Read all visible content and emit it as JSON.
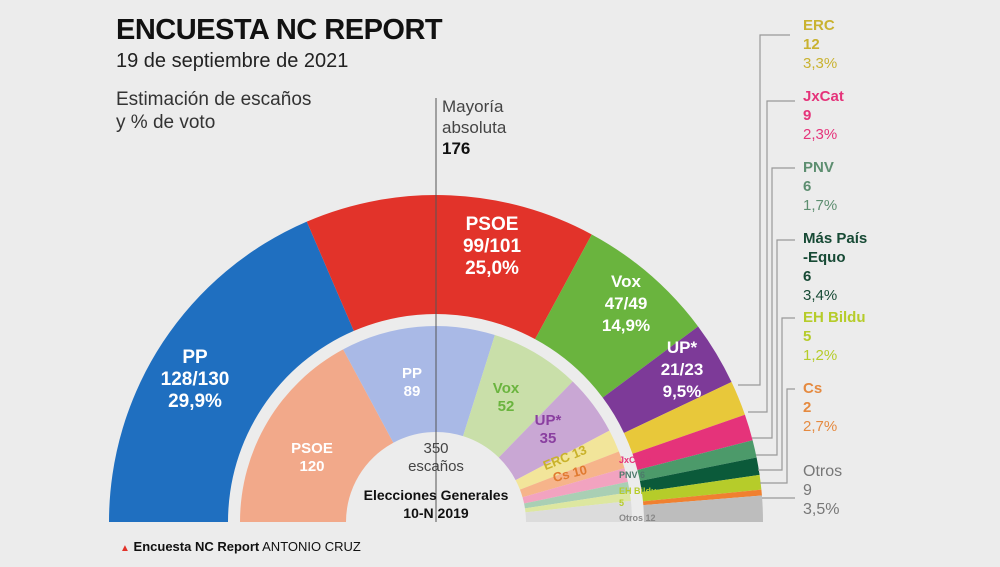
{
  "header": {
    "title": "ENCUESTA NC REPORT",
    "date": "19 de septiembre de 2021",
    "subtitle_1": "Estimación de escaños",
    "subtitle_2": "y % de voto"
  },
  "majority": {
    "label_1": "Mayoría",
    "label_2": "absoluta",
    "value": "176"
  },
  "center": {
    "total": "350",
    "unit": "escaños",
    "election_1": "Elecciones Generales",
    "election_2": "10-N 2019"
  },
  "footer": {
    "source": "Encuesta NC Report",
    "author": "ANTONIO CRUZ"
  },
  "chart_data": [
    {
      "type": "hemicycle",
      "name_text": "Encuesta NC Report",
      "parties": [
        {
          "party": "PP",
          "seats": "128/130",
          "seats_mid": 129,
          "vote": "29,9%",
          "color": "#1f6fc0"
        },
        {
          "party": "PSOE",
          "seats": "99/101",
          "seats_mid": 100,
          "vote": "25,0%",
          "color": "#e2332a"
        },
        {
          "party": "Vox",
          "seats": "47/49",
          "seats_mid": 48,
          "vote": "14,9%",
          "color": "#6ab43e"
        },
        {
          "party": "UP*",
          "seats": "21/23",
          "seats_mid": 22,
          "vote": "9,5%",
          "color": "#7d3a98"
        },
        {
          "party": "ERC",
          "seats": "12",
          "seats_mid": 12,
          "vote": "3,3%",
          "color": "#e8c83a"
        },
        {
          "party": "JxCat",
          "seats": "9",
          "seats_mid": 9,
          "vote": "2,3%",
          "color": "#e5337a"
        },
        {
          "party": "PNV",
          "seats": "6",
          "seats_mid": 6,
          "vote": "1,7%",
          "color": "#4c9a6a"
        },
        {
          "party": "Más País",
          "party_2": "-Equo",
          "seats": "6",
          "seats_mid": 6,
          "vote": "3,4%",
          "color": "#0b5a3a"
        },
        {
          "party": "EH Bildu",
          "seats": "5",
          "seats_mid": 5,
          "vote": "1,2%",
          "color": "#b6cc2a"
        },
        {
          "party": "Cs",
          "seats": "2",
          "seats_mid": 2,
          "vote": "2,7%",
          "color": "#f08030"
        },
        {
          "party": "Otros",
          "seats": "9",
          "seats_mid": 9,
          "vote": "3,5%",
          "color": "#bdbdbd"
        }
      ]
    },
    {
      "type": "hemicycle",
      "name_text": "Elecciones Generales 10-N 2019",
      "total": 350,
      "parties": [
        {
          "party": "PSOE",
          "seats": 120,
          "color": "#f2a98a",
          "text_color": "#ffffff"
        },
        {
          "party": "PP",
          "seats": 89,
          "color": "#a9b9e6",
          "text_color": "#ffffff"
        },
        {
          "party": "Vox",
          "seats": 52,
          "color": "#c9dfa9",
          "text_color": "#6ab43e"
        },
        {
          "party": "UP*",
          "seats": 35,
          "color": "#c9a7d4",
          "text_color": "#8a3fa0"
        },
        {
          "party": "ERC",
          "seats": 13,
          "color": "#f2e59a",
          "text_color": "#c9b22a"
        },
        {
          "party": "Cs",
          "seats": 10,
          "color": "#f6b48a",
          "text_color": "#e07a30"
        },
        {
          "party": "JxCat",
          "seats": 8,
          "color": "#f2a3c0",
          "text_color": "#e5337a"
        },
        {
          "party": "PNV",
          "seats": 6,
          "color": "#a9cfb4",
          "text_color": "#4c7a6a"
        },
        {
          "party": "EH Bildu",
          "seats": 5,
          "color": "#dde7a0",
          "text_color": "#b6cc2a"
        },
        {
          "party": "Otros",
          "seats": 12,
          "color": "#dcdcdc",
          "text_color": "#888888"
        }
      ]
    }
  ]
}
